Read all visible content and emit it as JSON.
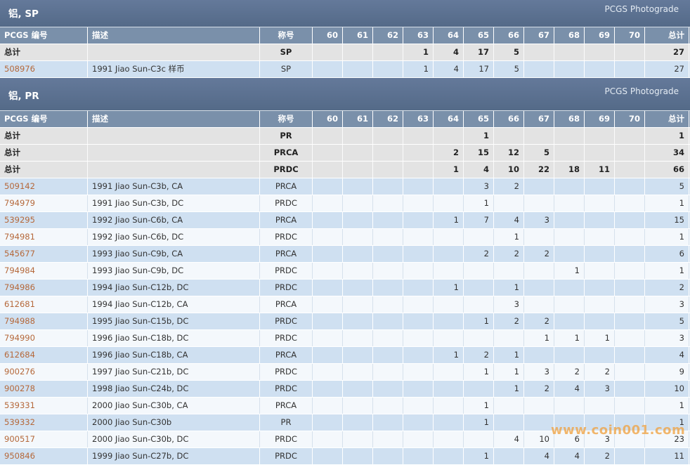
{
  "sections": [
    {
      "title": "铝, SP",
      "subtitle": "PCGS Photograde",
      "columns": [
        "PCGS 编号",
        "描述",
        "称号",
        "60",
        "61",
        "62",
        "63",
        "64",
        "65",
        "66",
        "67",
        "68",
        "69",
        "70",
        "总计"
      ],
      "totals": [
        {
          "label": "总计",
          "designation": "SP",
          "grades": [
            null,
            null,
            null,
            1,
            4,
            17,
            5,
            null,
            null,
            null,
            null
          ],
          "total": 27
        }
      ],
      "rows": [
        {
          "id": "508976",
          "description": "1991 Jiao Sun-C3c 样币",
          "designation": "SP",
          "grades": [
            null,
            null,
            null,
            1,
            4,
            17,
            5,
            null,
            null,
            null,
            null
          ],
          "total": 27
        }
      ]
    },
    {
      "title": "铝, PR",
      "subtitle": "PCGS Photograde",
      "columns": [
        "PCGS 编号",
        "描述",
        "称号",
        "60",
        "61",
        "62",
        "63",
        "64",
        "65",
        "66",
        "67",
        "68",
        "69",
        "70",
        "总计"
      ],
      "totals": [
        {
          "label": "总计",
          "designation": "PR",
          "grades": [
            null,
            null,
            null,
            null,
            null,
            1,
            null,
            null,
            null,
            null,
            null
          ],
          "total": 1
        },
        {
          "label": "总计",
          "designation": "PRCA",
          "grades": [
            null,
            null,
            null,
            null,
            2,
            15,
            12,
            5,
            null,
            null,
            null
          ],
          "total": 34
        },
        {
          "label": "总计",
          "designation": "PRDC",
          "grades": [
            null,
            null,
            null,
            null,
            1,
            4,
            10,
            22,
            18,
            11,
            null
          ],
          "total": 66
        }
      ],
      "rows": [
        {
          "id": "509142",
          "description": "1991 Jiao Sun-C3b, CA",
          "designation": "PRCA",
          "grades": [
            null,
            null,
            null,
            null,
            null,
            3,
            2,
            null,
            null,
            null,
            null
          ],
          "total": 5
        },
        {
          "id": "794979",
          "description": "1991 Jiao Sun-C3b, DC",
          "designation": "PRDC",
          "grades": [
            null,
            null,
            null,
            null,
            null,
            1,
            null,
            null,
            null,
            null,
            null
          ],
          "total": 1
        },
        {
          "id": "539295",
          "description": "1992 Jiao Sun-C6b, CA",
          "designation": "PRCA",
          "grades": [
            null,
            null,
            null,
            null,
            1,
            7,
            4,
            3,
            null,
            null,
            null
          ],
          "total": 15
        },
        {
          "id": "794981",
          "description": "1992 Jiao Sun-C6b, DC",
          "designation": "PRDC",
          "grades": [
            null,
            null,
            null,
            null,
            null,
            null,
            1,
            null,
            null,
            null,
            null
          ],
          "total": 1
        },
        {
          "id": "545677",
          "description": "1993 Jiao Sun-C9b, CA",
          "designation": "PRCA",
          "grades": [
            null,
            null,
            null,
            null,
            null,
            2,
            2,
            2,
            null,
            null,
            null
          ],
          "total": 6
        },
        {
          "id": "794984",
          "description": "1993 Jiao Sun-C9b, DC",
          "designation": "PRDC",
          "grades": [
            null,
            null,
            null,
            null,
            null,
            null,
            null,
            null,
            1,
            null,
            null
          ],
          "total": 1
        },
        {
          "id": "794986",
          "description": "1994 Jiao Sun-C12b, DC",
          "designation": "PRDC",
          "grades": [
            null,
            null,
            null,
            null,
            1,
            null,
            1,
            null,
            null,
            null,
            null
          ],
          "total": 2
        },
        {
          "id": "612681",
          "description": "1994 Jiao Sun-C12b, CA",
          "designation": "PRCA",
          "grades": [
            null,
            null,
            null,
            null,
            null,
            null,
            3,
            null,
            null,
            null,
            null
          ],
          "total": 3
        },
        {
          "id": "794988",
          "description": "1995 Jiao Sun-C15b, DC",
          "designation": "PRDC",
          "grades": [
            null,
            null,
            null,
            null,
            null,
            1,
            2,
            2,
            null,
            null,
            null
          ],
          "total": 5
        },
        {
          "id": "794990",
          "description": "1996 Jiao Sun-C18b, DC",
          "designation": "PRDC",
          "grades": [
            null,
            null,
            null,
            null,
            null,
            null,
            null,
            1,
            1,
            1,
            null
          ],
          "total": 3
        },
        {
          "id": "612684",
          "description": "1996 Jiao Sun-C18b, CA",
          "designation": "PRCA",
          "grades": [
            null,
            null,
            null,
            null,
            1,
            2,
            1,
            null,
            null,
            null,
            null
          ],
          "total": 4
        },
        {
          "id": "900276",
          "description": "1997 Jiao Sun-C21b, DC",
          "designation": "PRDC",
          "grades": [
            null,
            null,
            null,
            null,
            null,
            1,
            1,
            3,
            2,
            2,
            null
          ],
          "total": 9
        },
        {
          "id": "900278",
          "description": "1998 Jiao Sun-C24b, DC",
          "designation": "PRDC",
          "grades": [
            null,
            null,
            null,
            null,
            null,
            null,
            1,
            2,
            4,
            3,
            null
          ],
          "total": 10
        },
        {
          "id": "539331",
          "description": "2000 Jiao Sun-C30b, CA",
          "designation": "PRCA",
          "grades": [
            null,
            null,
            null,
            null,
            null,
            1,
            null,
            null,
            null,
            null,
            null
          ],
          "total": 1
        },
        {
          "id": "539332",
          "description": "2000 Jiao Sun-C30b",
          "designation": "PR",
          "grades": [
            null,
            null,
            null,
            null,
            null,
            1,
            null,
            null,
            null,
            null,
            null
          ],
          "total": 1
        },
        {
          "id": "900517",
          "description": "2000 Jiao Sun-C30b, DC",
          "designation": "PRDC",
          "grades": [
            null,
            null,
            null,
            null,
            null,
            null,
            4,
            10,
            6,
            3,
            null
          ],
          "total": 23
        },
        {
          "id": "950846",
          "description": "1999 Jiao Sun-C27b, DC",
          "designation": "PRDC",
          "grades": [
            null,
            null,
            null,
            null,
            null,
            1,
            null,
            4,
            4,
            2,
            null
          ],
          "total": 11
        }
      ]
    }
  ],
  "watermark": "www.coin001.com"
}
